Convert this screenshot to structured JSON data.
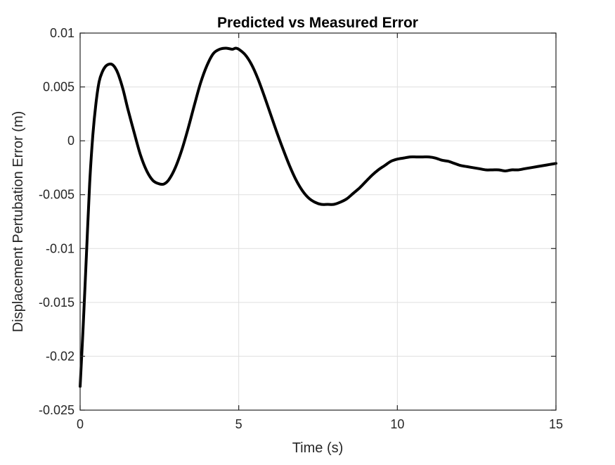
{
  "chart_data": {
    "type": "line",
    "title": "Predicted vs Measured Error",
    "xlabel": "Time (s)",
    "ylabel": "Displacement Pertubation Error (m)",
    "xlim": [
      0,
      15
    ],
    "ylim": [
      -0.025,
      0.01
    ],
    "xticks": [
      0,
      5,
      10,
      15
    ],
    "xtick_labels": [
      "0",
      "5",
      "10",
      "15"
    ],
    "yticks": [
      -0.025,
      -0.02,
      -0.015,
      -0.01,
      -0.005,
      0,
      0.005,
      0.01
    ],
    "ytick_labels": [
      "-0.025",
      "-0.02",
      "-0.015",
      "-0.01",
      "-0.005",
      "0",
      "0.005",
      "0.01"
    ],
    "grid": true,
    "legend": "none",
    "colors": {
      "series": "#000000",
      "grid": "#dfdfdf",
      "axis": "#262626"
    },
    "series": [
      {
        "x": [
          0,
          0.1,
          0.2,
          0.3,
          0.4,
          0.5,
          0.6,
          0.7,
          0.8,
          0.9,
          1.0,
          1.1,
          1.2,
          1.35,
          1.5,
          1.7,
          1.9,
          2.1,
          2.3,
          2.5,
          2.65,
          2.8,
          3.0,
          3.2,
          3.4,
          3.6,
          3.8,
          4.0,
          4.2,
          4.4,
          4.6,
          4.8,
          4.9,
          5.0,
          5.2,
          5.4,
          5.6,
          5.8,
          6.0,
          6.2,
          6.4,
          6.6,
          6.8,
          7.0,
          7.2,
          7.4,
          7.6,
          7.8,
          8.0,
          8.2,
          8.4,
          8.6,
          8.8,
          9.0,
          9.2,
          9.4,
          9.6,
          9.8,
          10.0,
          10.2,
          10.4,
          10.6,
          10.8,
          11.0,
          11.2,
          11.4,
          11.6,
          11.8,
          12.0,
          12.2,
          12.4,
          12.6,
          12.8,
          13.0,
          13.2,
          13.4,
          13.6,
          13.8,
          14.0,
          14.2,
          14.4,
          14.6,
          14.8,
          15.0
        ],
        "y": [
          -0.0228,
          -0.017,
          -0.0105,
          -0.004,
          0.0005,
          0.0035,
          0.0055,
          0.0064,
          0.0069,
          0.0071,
          0.0071,
          0.0068,
          0.0062,
          0.0048,
          0.003,
          0.0008,
          -0.0013,
          -0.0028,
          -0.0037,
          -0.004,
          -0.004,
          -0.0036,
          -0.0025,
          -0.0009,
          0.0011,
          0.0033,
          0.0054,
          0.007,
          0.0081,
          0.0085,
          0.0086,
          0.0085,
          0.0086,
          0.0085,
          0.008,
          0.0071,
          0.0058,
          0.0042,
          0.0025,
          0.0008,
          -0.0008,
          -0.0023,
          -0.0036,
          -0.0046,
          -0.0053,
          -0.0057,
          -0.0059,
          -0.0059,
          -0.0059,
          -0.0057,
          -0.0054,
          -0.0049,
          -0.0044,
          -0.0038,
          -0.0032,
          -0.0027,
          -0.0023,
          -0.0019,
          -0.0017,
          -0.0016,
          -0.0015,
          -0.0015,
          -0.0015,
          -0.0015,
          -0.0016,
          -0.0018,
          -0.0019,
          -0.0021,
          -0.0023,
          -0.0024,
          -0.0025,
          -0.0026,
          -0.0027,
          -0.0027,
          -0.0027,
          -0.0028,
          -0.0027,
          -0.0027,
          -0.0026,
          -0.0025,
          -0.0024,
          -0.0023,
          -0.0022,
          -0.0021
        ]
      }
    ]
  }
}
